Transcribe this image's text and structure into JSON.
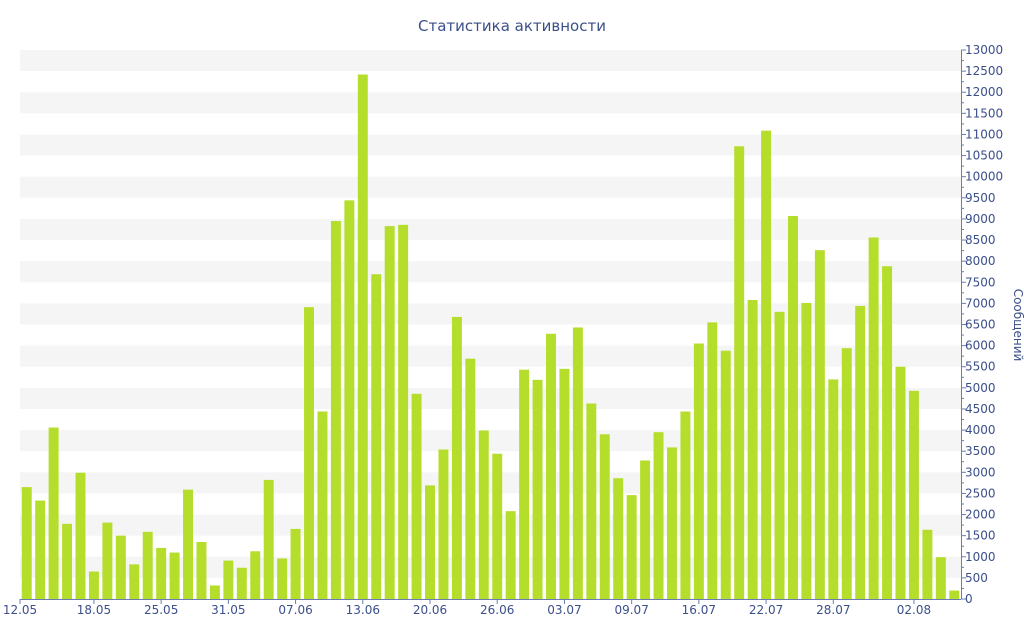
{
  "colors": {
    "bar": "#b5dd2b",
    "band": "#f5f5f5",
    "axis": "#6b7cb0",
    "text": "#3b4f8a"
  },
  "chart_data": {
    "type": "bar",
    "title": "Статистика активности",
    "ylabel": "Сообщений",
    "xlabel": "",
    "ylim": [
      0,
      13000
    ],
    "y_step": 500,
    "y_axis_side": "right",
    "grid": "alternating horizontal bands",
    "yticks": [
      "0",
      "500",
      "1000",
      "1500",
      "2000",
      "2500",
      "3000",
      "3500",
      "4000",
      "4500",
      "5000",
      "5500",
      "6000",
      "6500",
      "7000",
      "7500",
      "8000",
      "8500",
      "9000",
      "9500",
      "10000",
      "10500",
      "11000",
      "11500",
      "12000",
      "12500",
      "13000"
    ],
    "x_tick_labels": [
      {
        "index": 0,
        "label": "12.05"
      },
      {
        "index": 5,
        "label": "18.05"
      },
      {
        "index": 10,
        "label": "25.05"
      },
      {
        "index": 15,
        "label": "31.05"
      },
      {
        "index": 20,
        "label": "07.06"
      },
      {
        "index": 25,
        "label": "13.06"
      },
      {
        "index": 30,
        "label": "20.06"
      },
      {
        "index": 35,
        "label": "26.06"
      },
      {
        "index": 40,
        "label": "03.07"
      },
      {
        "index": 45,
        "label": "09.07"
      },
      {
        "index": 50,
        "label": "16.07"
      },
      {
        "index": 55,
        "label": "22.07"
      },
      {
        "index": 60,
        "label": "28.07"
      },
      {
        "index": 66,
        "label": "02.08"
      }
    ],
    "values": [
      2650,
      2330,
      4060,
      1780,
      2990,
      650,
      1810,
      1500,
      820,
      1590,
      1210,
      1100,
      2590,
      1350,
      320,
      910,
      740,
      1130,
      2820,
      960,
      1660,
      6910,
      4440,
      8950,
      9440,
      12420,
      7690,
      8830,
      8860,
      4860,
      2690,
      3540,
      6680,
      5690,
      3990,
      3440,
      2080,
      5430,
      5190,
      6280,
      5450,
      6430,
      4630,
      3900,
      2860,
      2460,
      3280,
      3950,
      3590,
      4440,
      6050,
      6550,
      5880,
      10720,
      7080,
      11090,
      6800,
      9070,
      7010,
      8260,
      5200,
      5940,
      6940,
      8560,
      7880,
      5500,
      4930,
      1640,
      990,
      200
    ]
  }
}
